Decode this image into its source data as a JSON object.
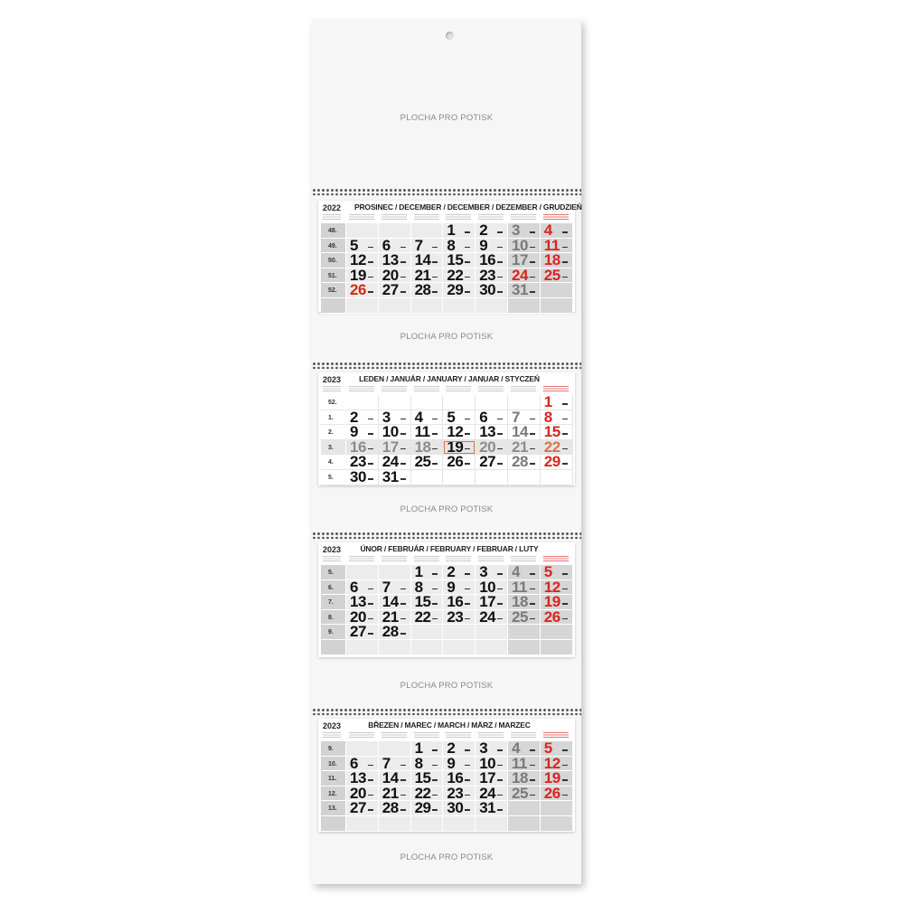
{
  "print_area_label": "PLOCHA PRO POTISK",
  "colors": {
    "red": "#d9261c",
    "gray_cell": "#d6d6d6",
    "light_cell": "#ececec",
    "today_outline": "#d9734a"
  },
  "months": [
    {
      "year": "2022",
      "title": "PROSINEC / DECEMBER / DECEMBER / DEZEMBER / GRUDZIEŃ",
      "style": "gray",
      "red_days": [
        24,
        25,
        26
      ],
      "weeks": [
        {
          "w": "48.",
          "days": [
            null,
            null,
            null,
            1,
            2,
            3,
            4
          ]
        },
        {
          "w": "49.",
          "days": [
            5,
            6,
            7,
            8,
            9,
            10,
            11
          ]
        },
        {
          "w": "50.",
          "days": [
            12,
            13,
            14,
            15,
            16,
            17,
            18
          ]
        },
        {
          "w": "51.",
          "days": [
            19,
            20,
            21,
            22,
            23,
            24,
            25
          ]
        },
        {
          "w": "52.",
          "days": [
            26,
            27,
            28,
            29,
            30,
            31,
            null
          ]
        },
        {
          "w": "",
          "days": [
            null,
            null,
            null,
            null,
            null,
            null,
            null
          ]
        }
      ]
    },
    {
      "year": "2023",
      "title": "LEDEN / JANUÁR / JANUARY / JANUAR / STYCZEŃ",
      "style": "white",
      "red_days": [
        1
      ],
      "current_week": "3.",
      "today": 19,
      "weeks": [
        {
          "w": "52.",
          "days": [
            null,
            null,
            null,
            null,
            null,
            null,
            1
          ]
        },
        {
          "w": "1.",
          "days": [
            2,
            3,
            4,
            5,
            6,
            7,
            8
          ]
        },
        {
          "w": "2.",
          "days": [
            9,
            10,
            11,
            12,
            13,
            14,
            15
          ]
        },
        {
          "w": "3.",
          "days": [
            16,
            17,
            18,
            19,
            20,
            21,
            22
          ]
        },
        {
          "w": "4.",
          "days": [
            23,
            24,
            25,
            26,
            27,
            28,
            29
          ]
        },
        {
          "w": "5.",
          "days": [
            30,
            31,
            null,
            null,
            null,
            null,
            null
          ]
        }
      ]
    },
    {
      "year": "2023",
      "title": "ÚNOR / FEBRUÁR / FEBRUARY / FEBRUAR / LUTY",
      "style": "gray",
      "red_days": [],
      "weeks": [
        {
          "w": "5.",
          "days": [
            null,
            null,
            1,
            2,
            3,
            4,
            5
          ]
        },
        {
          "w": "6.",
          "days": [
            6,
            7,
            8,
            9,
            10,
            11,
            12
          ]
        },
        {
          "w": "7.",
          "days": [
            13,
            14,
            15,
            16,
            17,
            18,
            19
          ]
        },
        {
          "w": "8.",
          "days": [
            20,
            21,
            22,
            23,
            24,
            25,
            26
          ]
        },
        {
          "w": "9.",
          "days": [
            27,
            28,
            null,
            null,
            null,
            null,
            null
          ]
        },
        {
          "w": "",
          "days": [
            null,
            null,
            null,
            null,
            null,
            null,
            null
          ]
        }
      ]
    },
    {
      "year": "2023",
      "title": "BŘEZEN / MAREC / MARCH / MÄRZ / MARZEC",
      "style": "gray",
      "red_days": [],
      "weeks": [
        {
          "w": "9.",
          "days": [
            null,
            null,
            1,
            2,
            3,
            4,
            5
          ]
        },
        {
          "w": "10.",
          "days": [
            6,
            7,
            8,
            9,
            10,
            11,
            12
          ]
        },
        {
          "w": "11.",
          "days": [
            13,
            14,
            15,
            16,
            17,
            18,
            19
          ]
        },
        {
          "w": "12.",
          "days": [
            20,
            21,
            22,
            23,
            24,
            25,
            26
          ]
        },
        {
          "w": "13.",
          "days": [
            27,
            28,
            29,
            30,
            31,
            null,
            null
          ]
        },
        {
          "w": "",
          "days": [
            null,
            null,
            null,
            null,
            null,
            null,
            null
          ]
        }
      ]
    }
  ]
}
